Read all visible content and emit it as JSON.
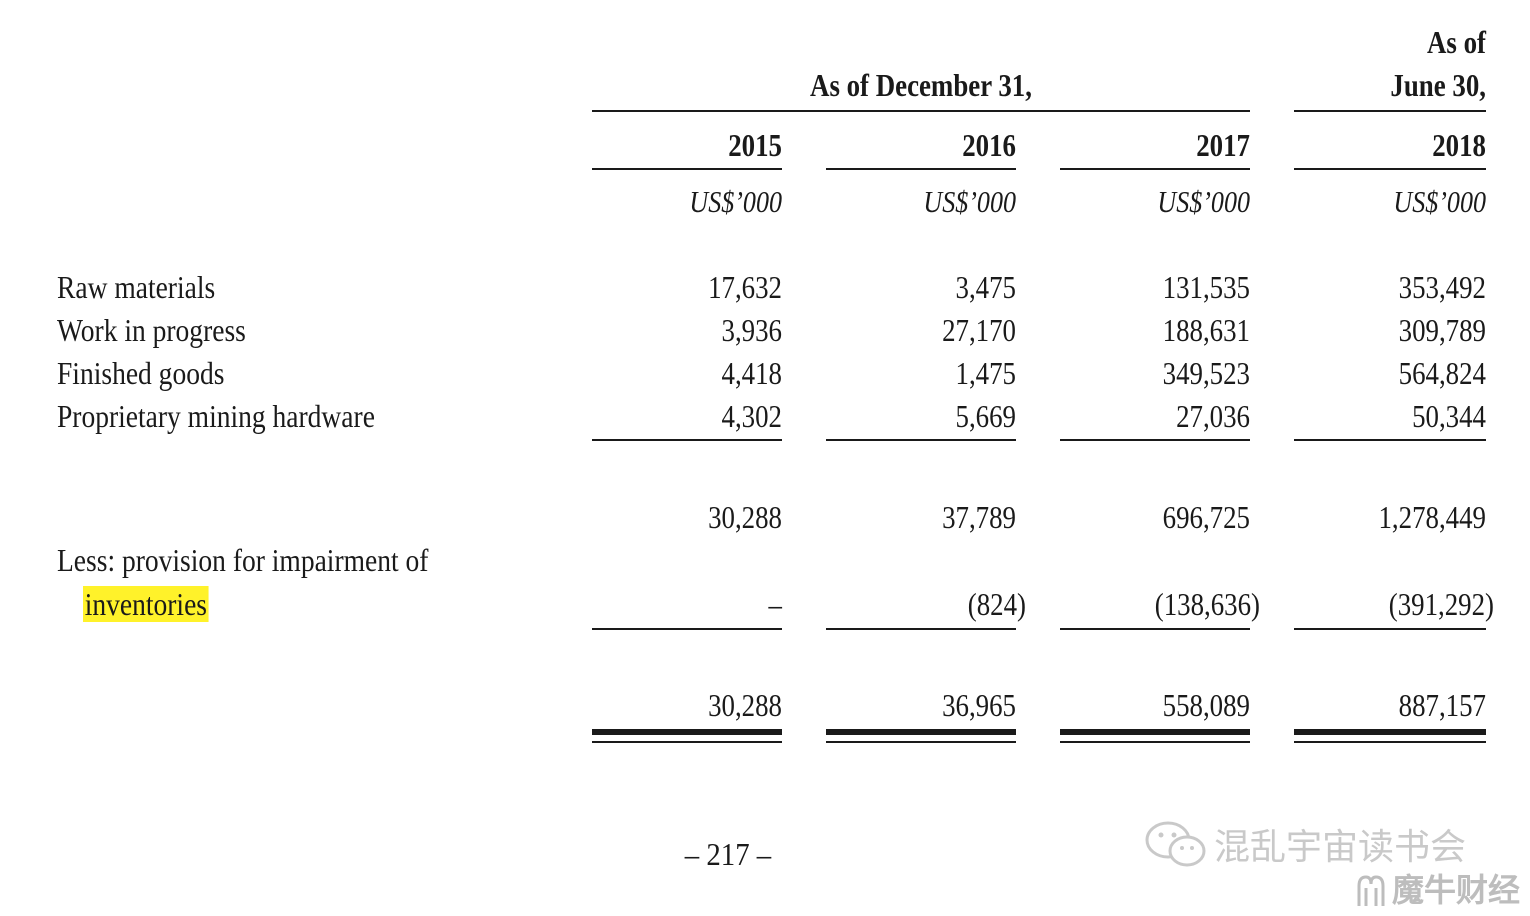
{
  "header": {
    "col4_top_line1": "As of",
    "col4_top_line2": "June 30,",
    "period_group": "As of December 31,"
  },
  "columns": [
    {
      "year": "2015",
      "unit": "US$’000"
    },
    {
      "year": "2016",
      "unit": "US$’000"
    },
    {
      "year": "2017",
      "unit": "US$’000"
    },
    {
      "year": "2018",
      "unit": "US$’000"
    }
  ],
  "rows": [
    {
      "label": "Raw materials",
      "values": [
        "17,632",
        "3,475",
        "131,535",
        "353,492"
      ]
    },
    {
      "label": "Work in progress",
      "values": [
        "3,936",
        "27,170",
        "188,631",
        "309,789"
      ]
    },
    {
      "label": "Finished goods",
      "values": [
        "4,418",
        "1,475",
        "349,523",
        "564,824"
      ]
    },
    {
      "label": "Proprietary mining hardware",
      "values": [
        "4,302",
        "5,669",
        "27,036",
        "50,344"
      ]
    }
  ],
  "subtotal": {
    "values": [
      "30,288",
      "37,789",
      "696,725",
      "1,278,449"
    ]
  },
  "provision": {
    "label_line1": "Less: provision for impairment of",
    "label_line2": "inventories",
    "values": [
      "–",
      "(824)",
      "(138,636)",
      "(391,292)"
    ]
  },
  "total": {
    "values": [
      "30,288",
      "36,965",
      "558,089",
      "887,157"
    ]
  },
  "footer": {
    "page_number": "– 217 –",
    "watermark_1": "混乱宇宙读书会",
    "watermark_2": "魔牛财经"
  }
}
